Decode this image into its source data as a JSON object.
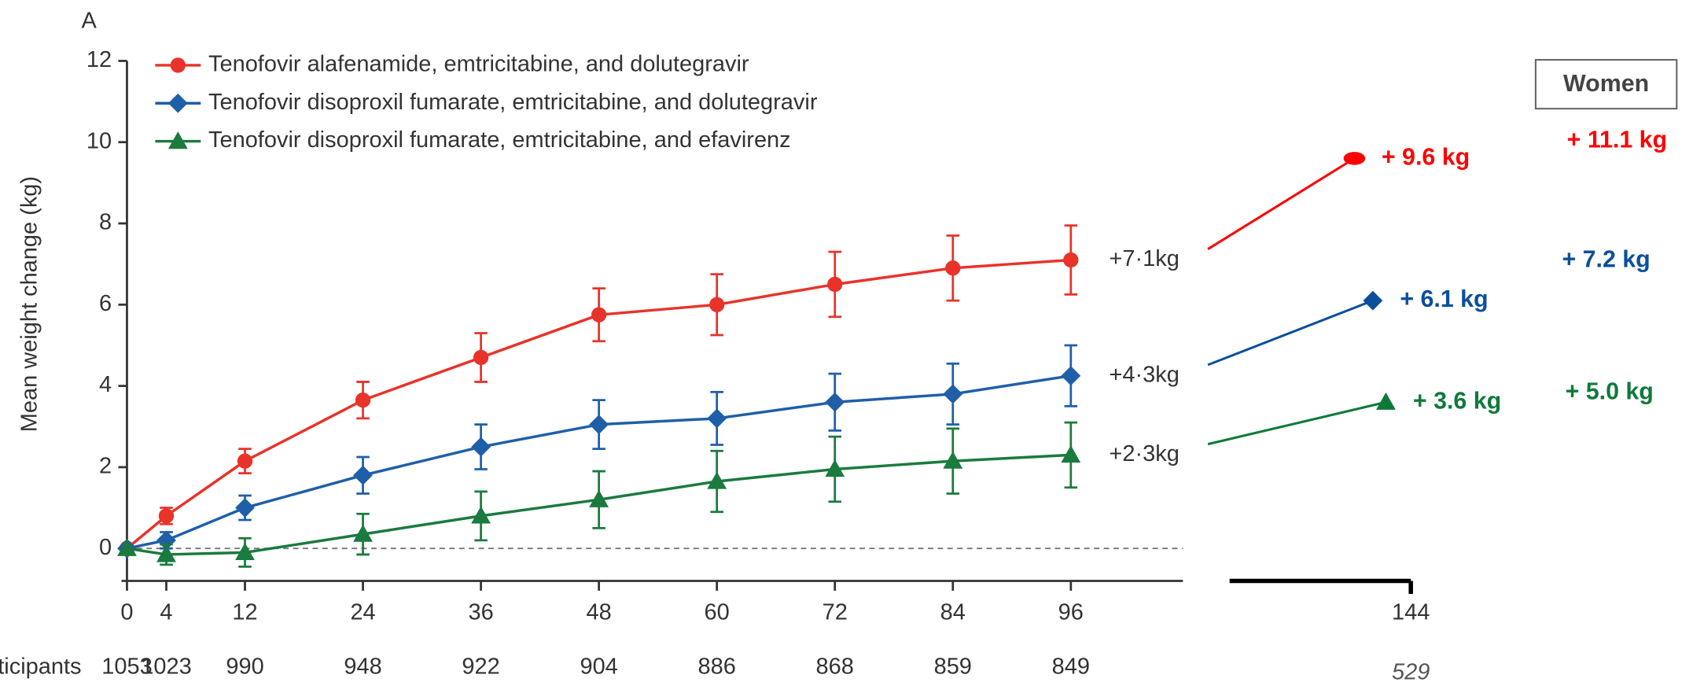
{
  "chart_data": {
    "type": "line",
    "panel_label": "A",
    "y_label": "Mean weight change (kg)",
    "x": [
      0,
      4,
      12,
      24,
      36,
      48,
      60,
      72,
      84,
      96
    ],
    "xlim": [
      0,
      107.4
    ],
    "xticks": [
      0,
      4,
      12,
      24,
      36,
      48,
      60,
      72,
      84,
      96
    ],
    "ylim": [
      -0.8,
      12
    ],
    "yticks": [
      0,
      2,
      4,
      6,
      8,
      10,
      12
    ],
    "series": [
      {
        "name": "Tenofovir alafenamide, emtricitabine, and dolutegravir",
        "color": "#e8332a",
        "marker": "circle",
        "values": [
          0,
          0.8,
          2.15,
          3.65,
          4.7,
          5.75,
          6.0,
          6.5,
          6.9,
          7.1
        ],
        "errors": [
          0,
          0.2,
          0.3,
          0.45,
          0.6,
          0.65,
          0.75,
          0.8,
          0.8,
          0.85
        ],
        "end_label": "+7·1kg"
      },
      {
        "name": "Tenofovir disoproxil fumarate, emtricitabine, and dolutegravir",
        "color": "#1f5fa8",
        "marker": "diamond",
        "values": [
          0,
          0.2,
          1.0,
          1.8,
          2.5,
          3.05,
          3.2,
          3.6,
          3.8,
          4.25
        ],
        "errors": [
          0,
          0.2,
          0.3,
          0.45,
          0.55,
          0.6,
          0.65,
          0.7,
          0.75,
          0.75
        ],
        "end_label": "+4·3kg"
      },
      {
        "name": "Tenofovir disoproxil fumarate, emtricitabine, and efavirenz",
        "color": "#1b7a3e",
        "marker": "triangle",
        "values": [
          0,
          -0.15,
          -0.1,
          0.35,
          0.8,
          1.2,
          1.65,
          1.95,
          2.15,
          2.3
        ],
        "errors": [
          0,
          0.25,
          0.35,
          0.5,
          0.6,
          0.7,
          0.75,
          0.8,
          0.8,
          0.8
        ],
        "end_label": "+2·3kg"
      }
    ],
    "participants_label": "ticipants",
    "participants": [
      1053,
      1023,
      990,
      948,
      922,
      904,
      886,
      868,
      859,
      849
    ],
    "extension": {
      "x": 144,
      "participants": 529,
      "values": [
        9.6,
        6.1,
        3.6
      ],
      "value_labels": [
        "+ 9.6 kg",
        "+ 6.1 kg",
        "+ 3.6 kg"
      ],
      "colors": [
        "#ff0000",
        "#0b4f9c",
        "#0e7a3a"
      ]
    },
    "women": {
      "title": "Women",
      "labels": [
        "+ 11.1 kg",
        "+ 7.2 kg",
        "+ 5.0 kg"
      ]
    }
  }
}
